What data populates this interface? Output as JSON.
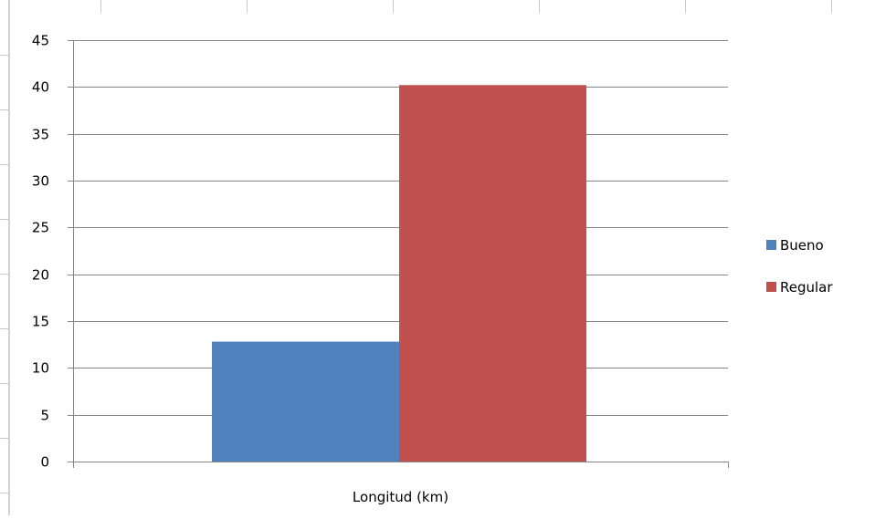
{
  "chart_data": {
    "type": "bar",
    "title": "",
    "xlabel": "",
    "ylabel": "",
    "categories": [
      "Longitud (km)"
    ],
    "series": [
      {
        "name": "Bueno",
        "color": "#4f81bd",
        "values": [
          12.8
        ]
      },
      {
        "name": "Regular",
        "color": "#c0504d",
        "values": [
          40.2
        ]
      }
    ],
    "ylim": [
      0,
      45
    ],
    "yticks": [
      0,
      5,
      10,
      15,
      20,
      25,
      30,
      35,
      40,
      45
    ],
    "grid": true,
    "legend_position": "right"
  }
}
